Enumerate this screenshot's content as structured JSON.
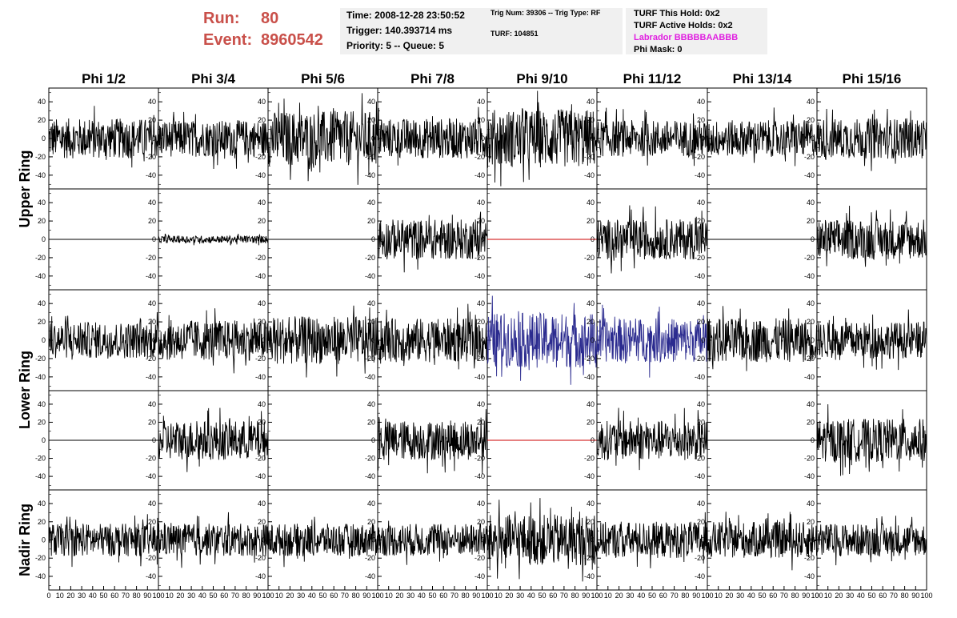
{
  "header": {
    "run_label": "Run:",
    "run_value": "80",
    "event_label": "Event:",
    "event_value": "8960542",
    "time_text": "Time: 2008-12-28 23:50:52",
    "trigger_text": "Trigger: 140.393714 ms",
    "priority_text": "Priority: 5 -- Queue: 5",
    "trig_num_text": "Trig Num: 39306 -- Trig Type: RF",
    "turf_text": "TURF: 104851",
    "turf_hold_text": "TURF This Hold: 0x2",
    "turf_active_text": "TURF Active Holds: 0x2",
    "labrador_text": "Labrador BBBBBAABBB",
    "phi_mask_text": "Phi Mask: 0"
  },
  "colors": {
    "run_text": "#c9504a",
    "labrador_text": "#e020e0",
    "trace_default": "#000000",
    "trace_masked": "#cc0000",
    "trace_highlight": "#2b2b8f",
    "info_box_bg": "#f0f0f0"
  },
  "chart_data": {
    "type": "line",
    "description_columns": [
      "Phi 1/2",
      "Phi 3/4",
      "Phi 5/6",
      "Phi 7/8",
      "Phi 9/10",
      "Phi 11/12",
      "Phi 13/14",
      "Phi 15/16"
    ],
    "row_groups": [
      {
        "label": "Upper Ring",
        "rows": [
          0,
          1
        ]
      },
      {
        "label": "Lower Ring",
        "rows": [
          2,
          3
        ]
      },
      {
        "label": "Nadir Ring",
        "rows": [
          4
        ]
      }
    ],
    "ylim": [
      -55,
      55
    ],
    "xlim": [
      0,
      100
    ],
    "y_ticks": [
      40,
      20,
      0,
      -20,
      -40
    ],
    "x_ticks": [
      0,
      10,
      20,
      30,
      40,
      50,
      60,
      70,
      80,
      90,
      100
    ],
    "x_tick_labels": [
      "0",
      "10",
      "20",
      "30",
      "40",
      "50",
      "60",
      "70",
      "80",
      "90",
      "100"
    ],
    "panels": [
      [
        {
          "amp": 22,
          "state": "signal"
        },
        {
          "amp": 20,
          "state": "signal"
        },
        {
          "amp": 30,
          "state": "signal"
        },
        {
          "amp": 22,
          "state": "signal"
        },
        {
          "amp": 32,
          "state": "signal"
        },
        {
          "amp": 20,
          "state": "signal"
        },
        {
          "amp": 20,
          "state": "signal"
        },
        {
          "amp": 22,
          "state": "signal"
        }
      ],
      [
        {
          "amp": 0,
          "state": "flat"
        },
        {
          "amp": 4,
          "state": "signal"
        },
        {
          "amp": 0,
          "state": "flat"
        },
        {
          "amp": 22,
          "state": "signal"
        },
        {
          "amp": 0,
          "state": "masked"
        },
        {
          "amp": 22,
          "state": "signal"
        },
        {
          "amp": 0,
          "state": "flat"
        },
        {
          "amp": 22,
          "state": "signal"
        }
      ],
      [
        {
          "amp": 20,
          "state": "signal"
        },
        {
          "amp": 22,
          "state": "signal"
        },
        {
          "amp": 26,
          "state": "signal"
        },
        {
          "amp": 24,
          "state": "signal"
        },
        {
          "amp": 30,
          "state": "highlight"
        },
        {
          "amp": 24,
          "state": "highlight"
        },
        {
          "amp": 24,
          "state": "signal"
        },
        {
          "amp": 20,
          "state": "signal"
        }
      ],
      [
        {
          "amp": 0,
          "state": "flat"
        },
        {
          "amp": 22,
          "state": "signal"
        },
        {
          "amp": 0,
          "state": "flat"
        },
        {
          "amp": 22,
          "state": "signal"
        },
        {
          "amp": 0,
          "state": "masked"
        },
        {
          "amp": 22,
          "state": "signal"
        },
        {
          "amp": 0,
          "state": "flat"
        },
        {
          "amp": 24,
          "state": "signal"
        }
      ],
      [
        {
          "amp": 18,
          "state": "signal"
        },
        {
          "amp": 18,
          "state": "signal"
        },
        {
          "amp": 18,
          "state": "signal"
        },
        {
          "amp": 18,
          "state": "signal"
        },
        {
          "amp": 28,
          "state": "signal"
        },
        {
          "amp": 20,
          "state": "signal"
        },
        {
          "amp": 20,
          "state": "signal"
        },
        {
          "amp": 18,
          "state": "signal"
        }
      ]
    ]
  }
}
